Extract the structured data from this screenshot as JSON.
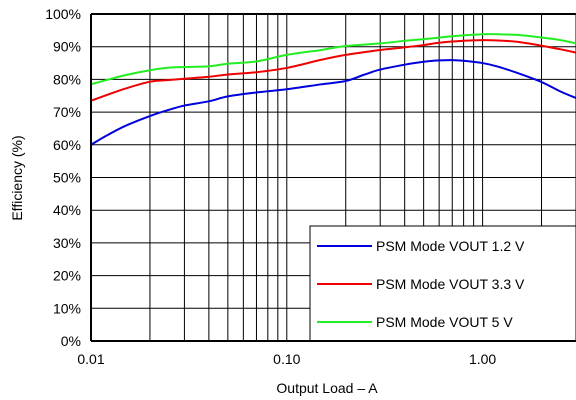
{
  "chart_data": {
    "type": "line",
    "title": "",
    "xlabel": "Output Load – A",
    "ylabel": "Efficiency (%)",
    "xscale": "log",
    "xlim": [
      0.01,
      3
    ],
    "ylim": [
      0,
      100
    ],
    "grid": true,
    "legend_position": "bottom-right",
    "x_tick_labels": [
      {
        "value": 0.01,
        "label": "0.01"
      },
      {
        "value": 0.1,
        "label": "0.10"
      },
      {
        "value": 1,
        "label": "1.00"
      }
    ],
    "y_tick_labels": [
      {
        "value": 0,
        "label": "0%"
      },
      {
        "value": 10,
        "label": "10%"
      },
      {
        "value": 20,
        "label": "20%"
      },
      {
        "value": 30,
        "label": "30%"
      },
      {
        "value": 40,
        "label": "40%"
      },
      {
        "value": 50,
        "label": "50%"
      },
      {
        "value": 60,
        "label": "60%"
      },
      {
        "value": 70,
        "label": "70%"
      },
      {
        "value": 80,
        "label": "80%"
      },
      {
        "value": 90,
        "label": "90%"
      },
      {
        "value": 100,
        "label": "100%"
      }
    ],
    "series": [
      {
        "name": "PSM Mode VOUT 1.2 V",
        "color": "#0000dd",
        "points": [
          [
            0.01,
            60
          ],
          [
            0.012,
            62.8
          ],
          [
            0.015,
            65.8
          ],
          [
            0.02,
            68.8
          ],
          [
            0.025,
            70.7
          ],
          [
            0.03,
            72.0
          ],
          [
            0.04,
            73.3
          ],
          [
            0.05,
            74.8
          ],
          [
            0.07,
            76.0
          ],
          [
            0.1,
            77.0
          ],
          [
            0.15,
            78.5
          ],
          [
            0.2,
            79.5
          ],
          [
            0.25,
            81.5
          ],
          [
            0.3,
            83.0
          ],
          [
            0.4,
            84.5
          ],
          [
            0.5,
            85.4
          ],
          [
            0.6,
            85.8
          ],
          [
            0.7,
            85.9
          ],
          [
            0.8,
            85.7
          ],
          [
            1.0,
            85.0
          ],
          [
            1.2,
            83.9
          ],
          [
            1.5,
            82.0
          ],
          [
            2.0,
            79.2
          ],
          [
            2.5,
            76.3
          ],
          [
            3.0,
            74.3
          ]
        ]
      },
      {
        "name": "PSM Mode VOUT 3.3 V",
        "color": "#ee0000",
        "points": [
          [
            0.01,
            73.5
          ],
          [
            0.012,
            75.2
          ],
          [
            0.015,
            77.2
          ],
          [
            0.02,
            79.3
          ],
          [
            0.025,
            79.8
          ],
          [
            0.03,
            80.2
          ],
          [
            0.04,
            80.8
          ],
          [
            0.05,
            81.5
          ],
          [
            0.07,
            82.2
          ],
          [
            0.1,
            83.5
          ],
          [
            0.15,
            86.0
          ],
          [
            0.2,
            87.5
          ],
          [
            0.3,
            89.0
          ],
          [
            0.4,
            89.8
          ],
          [
            0.5,
            90.5
          ],
          [
            0.6,
            91.2
          ],
          [
            0.8,
            91.8
          ],
          [
            1.0,
            92.0
          ],
          [
            1.2,
            91.9
          ],
          [
            1.5,
            91.5
          ],
          [
            2.0,
            90.3
          ],
          [
            2.5,
            89.2
          ],
          [
            3.0,
            88.2
          ]
        ]
      },
      {
        "name": "PSM Mode VOUT 5 V",
        "color": "#22ee22",
        "points": [
          [
            0.01,
            78.5
          ],
          [
            0.012,
            79.8
          ],
          [
            0.015,
            81.3
          ],
          [
            0.02,
            82.8
          ],
          [
            0.025,
            83.6
          ],
          [
            0.03,
            83.8
          ],
          [
            0.04,
            84.0
          ],
          [
            0.05,
            84.8
          ],
          [
            0.07,
            85.5
          ],
          [
            0.1,
            87.5
          ],
          [
            0.15,
            89.0
          ],
          [
            0.2,
            90.2
          ],
          [
            0.3,
            91.0
          ],
          [
            0.4,
            91.8
          ],
          [
            0.5,
            92.3
          ],
          [
            0.7,
            93.2
          ],
          [
            1.0,
            93.8
          ],
          [
            1.2,
            93.8
          ],
          [
            1.5,
            93.6
          ],
          [
            2.0,
            92.8
          ],
          [
            2.5,
            92.0
          ],
          [
            3.0,
            91.0
          ]
        ]
      }
    ]
  }
}
